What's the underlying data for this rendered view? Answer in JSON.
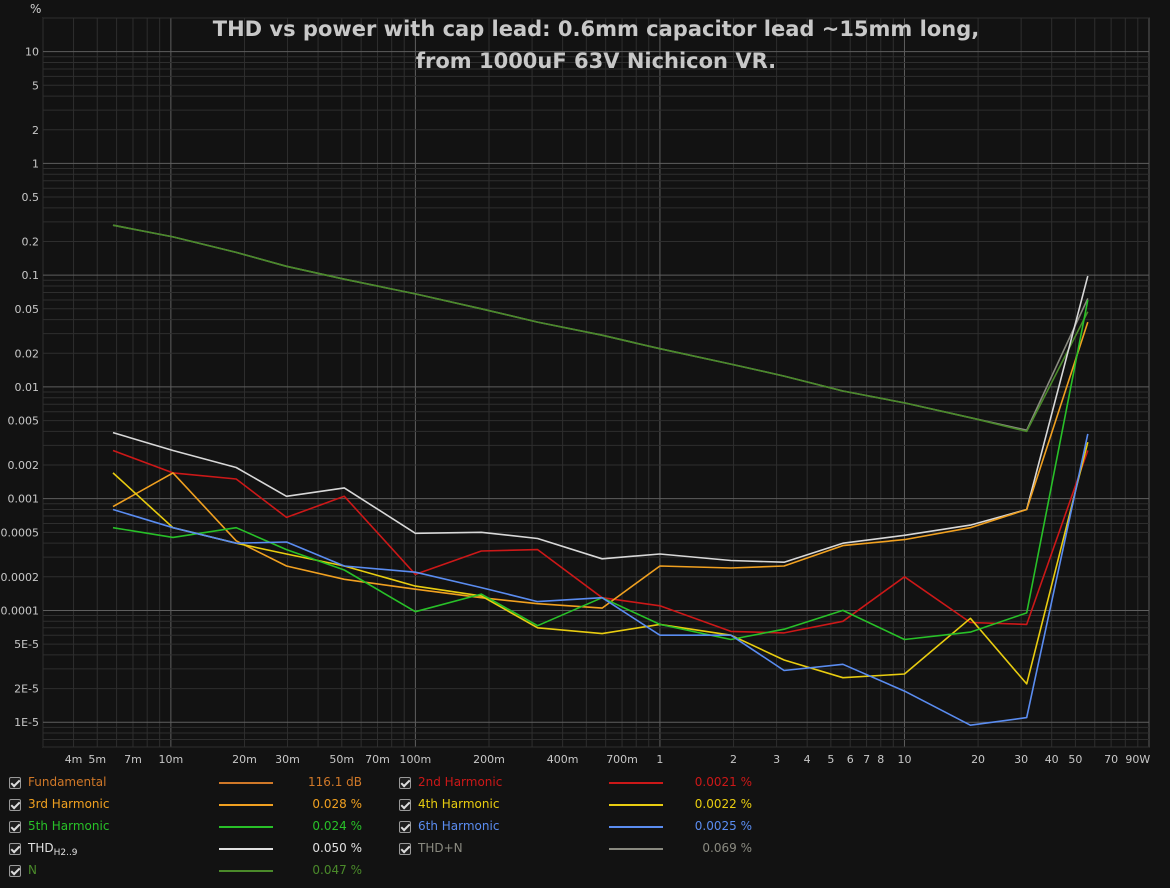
{
  "chart_data": {
    "type": "line",
    "title_lines": [
      "THD vs power with cap lead: 0.6mm capacitor lead ~15mm long,",
      "from 1000uF 63V Nichicon VR."
    ],
    "ylabel": "%",
    "y_scale": "log",
    "x_scale": "log",
    "x_unit": "W",
    "xlim": [
      0.003,
      100
    ],
    "ylim": [
      6e-06,
      20
    ],
    "grid": true,
    "y_ticks": [
      "10",
      "5",
      "2",
      "1",
      "0.5",
      "0.2",
      "0.1",
      "0.05",
      "0.02",
      "0.01",
      "0.005",
      "0.002",
      "0.001",
      "0.0005",
      "0.0002",
      "0.0001",
      "5E-5",
      "2E-5",
      "1E-5"
    ],
    "y_tick_values": [
      10,
      5,
      2,
      1,
      0.5,
      0.2,
      0.1,
      0.05,
      0.02,
      0.01,
      0.005,
      0.002,
      0.001,
      0.0005,
      0.0002,
      0.0001,
      5e-05,
      2e-05,
      1e-05
    ],
    "x_ticks": [
      "4m",
      "5m",
      "7m",
      "10m",
      "20m",
      "30m",
      "50m",
      "70m",
      "100m",
      "200m",
      "400m",
      "700m",
      "1",
      "2",
      "3",
      "4",
      "5",
      "6",
      "7",
      "8",
      "10",
      "20",
      "30",
      "40",
      "50",
      "70",
      "90W"
    ],
    "x_tick_values": [
      0.004,
      0.005,
      0.007,
      0.01,
      0.02,
      0.03,
      0.05,
      0.07,
      0.1,
      0.2,
      0.4,
      0.7,
      1,
      2,
      3,
      4,
      5,
      6,
      7,
      8,
      10,
      20,
      30,
      40,
      50,
      70,
      90
    ],
    "x_major": [
      0.01,
      0.1,
      1,
      10
    ],
    "x": [
      0.0058,
      0.0102,
      0.0185,
      0.0297,
      0.0512,
      0.1,
      0.186,
      0.316,
      0.58,
      1.0,
      1.95,
      3.22,
      5.6,
      10.0,
      18.6,
      31.6,
      56.2
    ],
    "series": [
      {
        "name": "THD+N",
        "color": "#8a8a80",
        "values": [
          0.28,
          0.22,
          0.16,
          0.12,
          0.092,
          0.068,
          0.05,
          0.038,
          0.029,
          0.022,
          0.016,
          0.0125,
          0.0092,
          0.0072,
          0.0053,
          0.0041,
          0.062
        ]
      },
      {
        "name": "N",
        "color": "#4a8a2a",
        "values": [
          0.28,
          0.22,
          0.16,
          0.12,
          0.092,
          0.068,
          0.05,
          0.038,
          0.029,
          0.022,
          0.016,
          0.0125,
          0.0092,
          0.0072,
          0.0053,
          0.004,
          0.047
        ]
      },
      {
        "name": "THD H2..9",
        "color": "#d8d8d8",
        "values": [
          0.0039,
          0.0027,
          0.0019,
          0.00105,
          0.00125,
          0.00049,
          0.0005,
          0.00044,
          0.00029,
          0.00032,
          0.00028,
          0.00027,
          0.0004,
          0.00047,
          0.00058,
          0.0008,
          0.098
        ]
      },
      {
        "name": "2nd Harmonic",
        "color": "#cc1818",
        "values": [
          0.0027,
          0.0017,
          0.0015,
          0.00068,
          0.00105,
          0.00021,
          0.00034,
          0.00035,
          0.00013,
          0.00011,
          6.5e-05,
          6.3e-05,
          8e-05,
          0.0002,
          7.8e-05,
          7.5e-05,
          0.0027
        ]
      },
      {
        "name": "3rd Harmonic",
        "color": "#f0a020",
        "values": [
          0.00085,
          0.0017,
          0.00042,
          0.00025,
          0.00019,
          0.000155,
          0.00013,
          0.000115,
          0.000105,
          0.00025,
          0.00024,
          0.00025,
          0.00038,
          0.00043,
          0.00055,
          0.0008,
          0.038
        ]
      },
      {
        "name": "4th Harmonic",
        "color": "#e8cc10",
        "values": [
          0.0017,
          0.00055,
          0.0004,
          0.00032,
          0.00025,
          0.000165,
          0.000135,
          7e-05,
          6.2e-05,
          7.5e-05,
          6e-05,
          3.6e-05,
          2.5e-05,
          2.7e-05,
          8.5e-05,
          2.2e-05,
          0.0032
        ]
      },
      {
        "name": "5th Harmonic",
        "color": "#28c028",
        "values": [
          0.00055,
          0.00045,
          0.00055,
          0.00035,
          0.00023,
          9.75e-05,
          0.00014,
          7.3e-05,
          0.00013,
          7.5e-05,
          5.5e-05,
          6.8e-05,
          0.0001,
          5.5e-05,
          6.4e-05,
          9.5e-05,
          0.06
        ]
      },
      {
        "name": "6th Harmonic",
        "color": "#5a8cf0",
        "values": [
          0.0008,
          0.00055,
          0.0004,
          0.00041,
          0.00025,
          0.00022,
          0.00016,
          0.00012,
          0.00013,
          6e-05,
          6e-05,
          2.9e-05,
          3.3e-05,
          1.9e-05,
          9.4e-06,
          1.1e-05,
          0.0038
        ]
      }
    ]
  },
  "legend": [
    {
      "col": 0,
      "row": 0,
      "label": "Fundamental",
      "sub": "",
      "value": "116.1 dB",
      "color": "#d07828"
    },
    {
      "col": 1,
      "row": 0,
      "label": "2nd Harmonic",
      "sub": "",
      "value": "0.0021 %",
      "color": "#cc1818"
    },
    {
      "col": 0,
      "row": 1,
      "label": "3rd Harmonic",
      "sub": "",
      "value": "0.028 %",
      "color": "#f0a020"
    },
    {
      "col": 1,
      "row": 1,
      "label": "4th Harmonic",
      "sub": "",
      "value": "0.0022 %",
      "color": "#e8cc10"
    },
    {
      "col": 0,
      "row": 2,
      "label": "5th Harmonic",
      "sub": "",
      "value": "0.024 %",
      "color": "#28c028"
    },
    {
      "col": 1,
      "row": 2,
      "label": "6th Harmonic",
      "sub": "",
      "value": "0.0025 %",
      "color": "#5a8cf0"
    },
    {
      "col": 0,
      "row": 3,
      "label": "THD",
      "sub": "H2..9",
      "value": "0.050 %",
      "color": "#e0e0e0"
    },
    {
      "col": 1,
      "row": 3,
      "label": "THD+N",
      "sub": "",
      "value": "0.069 %",
      "color": "#8a8a80"
    },
    {
      "col": 0,
      "row": 4,
      "label": "N",
      "sub": "",
      "value": "0.047 %",
      "color": "#4a8a2a"
    }
  ]
}
